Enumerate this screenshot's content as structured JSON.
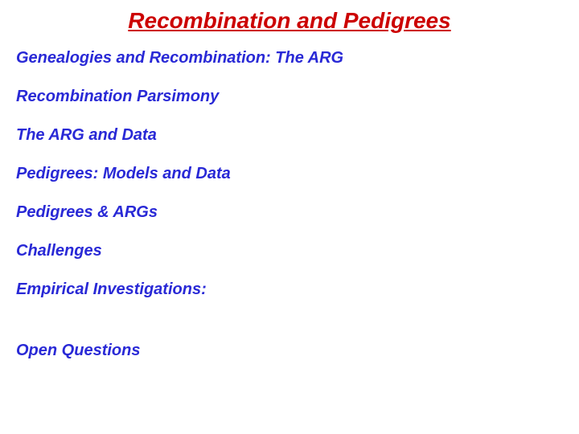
{
  "title": {
    "text": "Recombination and Pedigrees",
    "color": "#cc0000",
    "fontsize": 28
  },
  "items": [
    {
      "text": "Genealogies and Recombination: The ARG",
      "extra_gap": false
    },
    {
      "text": "Recombination Parsimony",
      "extra_gap": false
    },
    {
      "text": "The ARG and Data",
      "extra_gap": false
    },
    {
      "text": "Pedigrees: Models and Data",
      "extra_gap": false
    },
    {
      "text": "Pedigrees & ARGs",
      "extra_gap": false
    },
    {
      "text": "Challenges",
      "extra_gap": false
    },
    {
      "text": "Empirical Investigations:",
      "extra_gap": true
    },
    {
      "text": "Open Questions",
      "extra_gap": false
    }
  ],
  "item_style": {
    "color": "#2929d6",
    "fontsize": 20
  },
  "background_color": "#ffffff"
}
